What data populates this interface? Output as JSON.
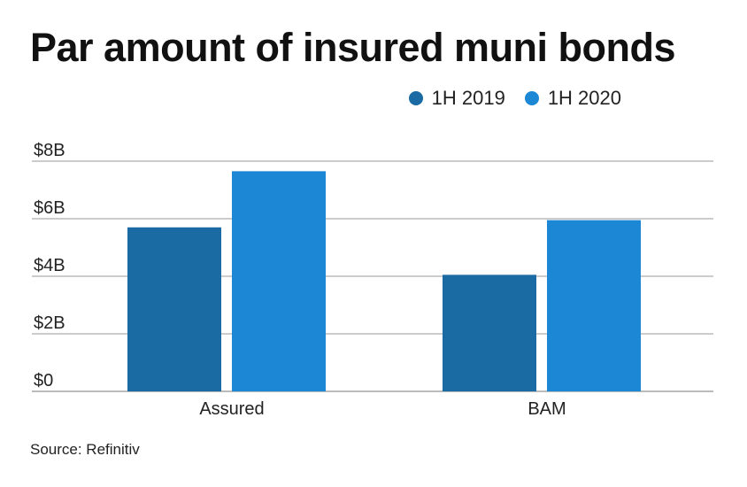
{
  "chart_data": {
    "type": "bar",
    "title": "Par amount of insured muni bonds",
    "categories": [
      "Assured",
      "BAM"
    ],
    "series": [
      {
        "name": "1H 2019",
        "color": "#1a6aa3",
        "values": [
          5.7,
          4.05
        ]
      },
      {
        "name": "1H 2020",
        "color": "#1c87d4",
        "values": [
          7.65,
          5.95
        ]
      }
    ],
    "y_ticks": [
      0,
      2,
      4,
      6,
      8
    ],
    "y_tick_labels": [
      "$0",
      "$2B",
      "$4B",
      "$6B",
      "$8B"
    ],
    "ylim": [
      0,
      8
    ],
    "grid": true,
    "legend_position": "top-right",
    "source": "Source: Refinitiv"
  }
}
